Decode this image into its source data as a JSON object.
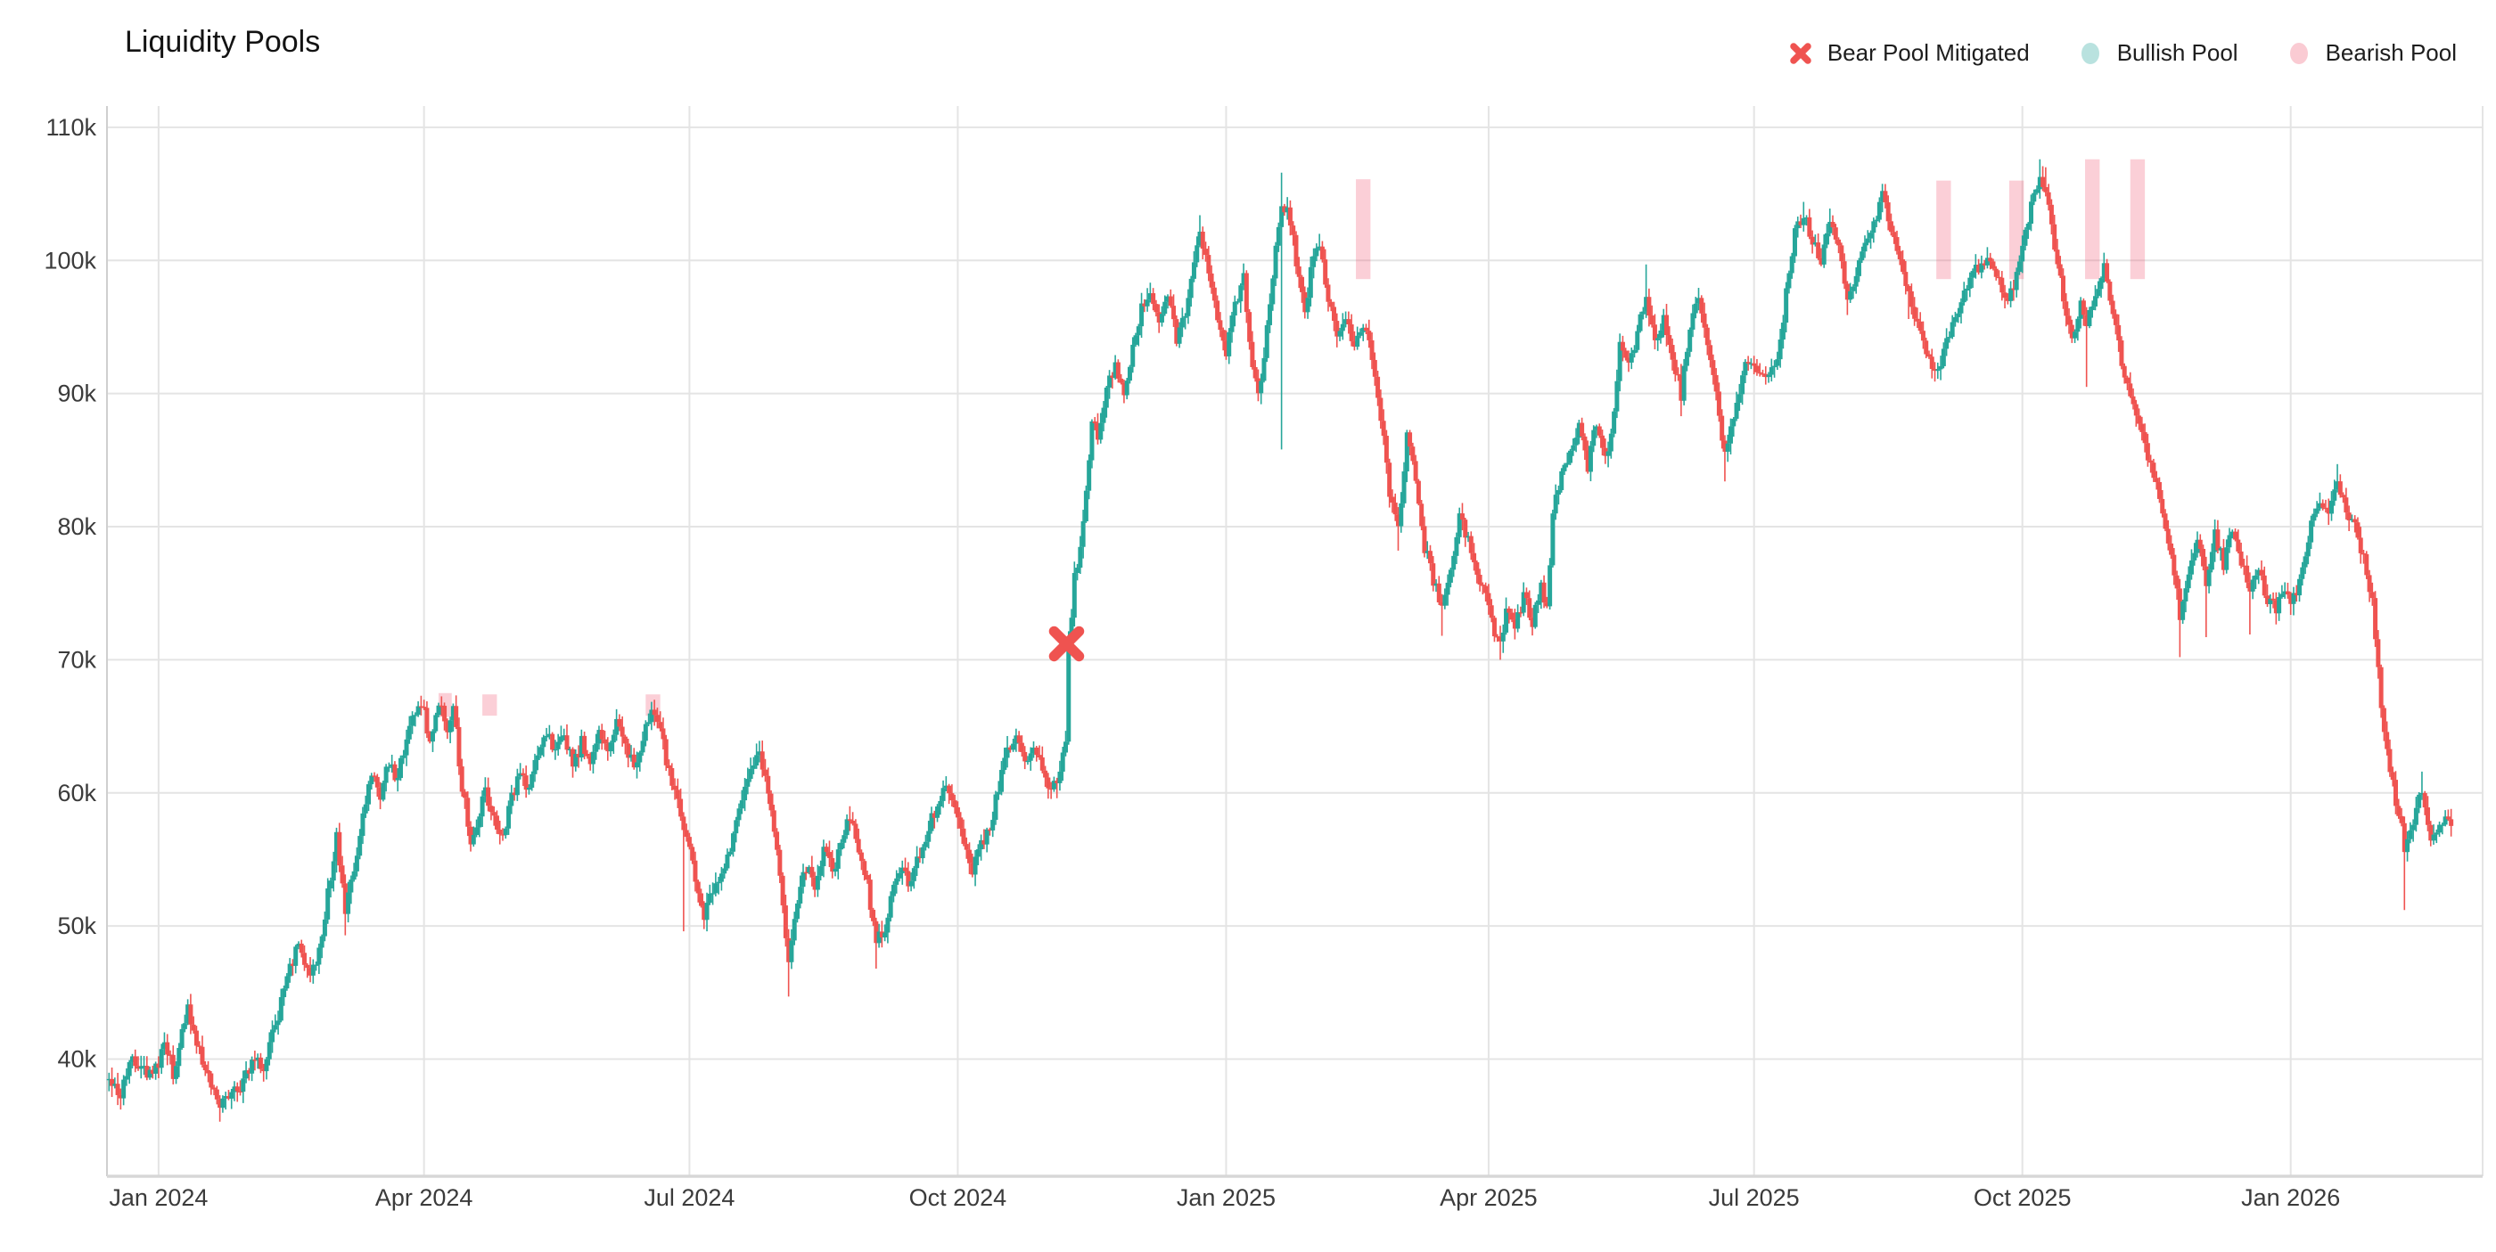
{
  "title": "Liquidity Pools",
  "legend": {
    "items": [
      {
        "label": "Bear Pool Mitigated",
        "icon": "x-marker",
        "color": "#EF5350"
      },
      {
        "label": "Bullish Pool",
        "icon": "dot",
        "color": "rgba(38,166,154,0.32)"
      },
      {
        "label": "Bearish Pool",
        "icon": "dot",
        "color": "rgba(239,83,110,0.30)"
      }
    ]
  },
  "axes": {
    "y_ticks": [
      {
        "value": 40,
        "label": "40k"
      },
      {
        "value": 50,
        "label": "50k"
      },
      {
        "value": 60,
        "label": "60k"
      },
      {
        "value": 70,
        "label": "70k"
      },
      {
        "value": 80,
        "label": "80k"
      },
      {
        "value": 90,
        "label": "90k"
      },
      {
        "value": 100,
        "label": "100k"
      },
      {
        "value": 110,
        "label": "110k"
      }
    ],
    "x_ticks": [
      {
        "day": 0,
        "label": "Jan 2024"
      },
      {
        "day": 91,
        "label": "Apr 2024"
      },
      {
        "day": 182,
        "label": "Jul 2024"
      },
      {
        "day": 274,
        "label": "Oct 2024"
      },
      {
        "day": 366,
        "label": "Jan 2025"
      },
      {
        "day": 456,
        "label": "Apr 2025"
      },
      {
        "day": 547,
        "label": "Jul 2025"
      },
      {
        "day": 639,
        "label": "Oct 2025"
      },
      {
        "day": 731,
        "label": "Jan 2026"
      }
    ]
  },
  "chart_data": {
    "type": "candlestick",
    "title": "Liquidity Pools",
    "x_unit": "days since Jan 1 2024",
    "x_range_days": [
      -17.7,
      796.8
    ],
    "y_range_thousands": [
      31.2,
      111.6
    ],
    "grid": true,
    "legend_position": "top-right",
    "up_color": "#26A69A",
    "down_color": "#EF5350",
    "pool_bearish_color": "#EF536E",
    "pool_bearish_opacity": 0.28,
    "pool_bullish_color": "#26A69A",
    "pool_bullish_opacity": 0.28,
    "marker_color": "#EF5350",
    "close_anchors": [
      [
        -17,
        38.5
      ],
      [
        -13,
        37.6
      ],
      [
        -10,
        40.1
      ],
      [
        -4,
        39.0
      ],
      [
        0,
        39.5
      ],
      [
        2,
        41.6
      ],
      [
        5,
        38.9
      ],
      [
        8,
        42.3
      ],
      [
        10,
        43.6
      ],
      [
        13,
        41.4
      ],
      [
        17,
        38.8
      ],
      [
        21,
        36.2
      ],
      [
        25,
        38.0
      ],
      [
        28,
        37.4
      ],
      [
        32,
        40.0
      ],
      [
        36,
        39.2
      ],
      [
        40,
        42.5
      ],
      [
        44,
        46.2
      ],
      [
        48,
        48.6
      ],
      [
        52,
        46.6
      ],
      [
        55,
        48.0
      ],
      [
        58,
        52.5
      ],
      [
        61,
        56.6
      ],
      [
        64,
        51.0
      ],
      [
        67,
        54.0
      ],
      [
        70,
        58.5
      ],
      [
        73,
        61.5
      ],
      [
        76,
        60.0
      ],
      [
        79,
        62.5
      ],
      [
        82,
        61.0
      ],
      [
        86,
        65.5
      ],
      [
        90,
        66.9
      ],
      [
        93,
        64.0
      ],
      [
        96,
        66.6
      ],
      [
        99,
        65.0
      ],
      [
        101,
        66.4
      ],
      [
        104,
        60.5
      ],
      [
        107,
        56.6
      ],
      [
        110,
        58.5
      ],
      [
        112,
        60.0
      ],
      [
        115,
        58.0
      ],
      [
        118,
        56.8
      ],
      [
        121,
        59.5
      ],
      [
        124,
        61.5
      ],
      [
        127,
        60.2
      ],
      [
        130,
        63.0
      ],
      [
        133,
        64.7
      ],
      [
        136,
        63.2
      ],
      [
        139,
        64.4
      ],
      [
        142,
        62.0
      ],
      [
        145,
        63.8
      ],
      [
        148,
        62.5
      ],
      [
        151,
        64.2
      ],
      [
        154,
        63.0
      ],
      [
        157,
        65.1
      ],
      [
        160,
        63.5
      ],
      [
        163,
        61.8
      ],
      [
        166,
        64.2
      ],
      [
        169,
        65.9
      ],
      [
        172,
        64.5
      ],
      [
        175,
        61.5
      ],
      [
        178,
        59.0
      ],
      [
        181,
        57.0
      ],
      [
        184,
        53.8
      ],
      [
        187,
        50.8
      ],
      [
        190,
        52.5
      ],
      [
        193,
        53.5
      ],
      [
        196,
        55.5
      ],
      [
        199,
        58.5
      ],
      [
        202,
        61.0
      ],
      [
        205,
        63.3
      ],
      [
        208,
        61.5
      ],
      [
        211,
        57.5
      ],
      [
        214,
        51.5
      ],
      [
        216,
        47.5
      ],
      [
        219,
        52.0
      ],
      [
        222,
        54.5
      ],
      [
        225,
        53.0
      ],
      [
        228,
        55.8
      ],
      [
        231,
        54.0
      ],
      [
        234,
        56.5
      ],
      [
        237,
        58.2
      ],
      [
        240,
        56.0
      ],
      [
        243,
        53.0
      ],
      [
        246,
        48.8
      ],
      [
        249,
        49.5
      ],
      [
        252,
        53.5
      ],
      [
        255,
        54.5
      ],
      [
        258,
        53.0
      ],
      [
        261,
        55.5
      ],
      [
        264,
        57.5
      ],
      [
        267,
        59.0
      ],
      [
        270,
        60.6
      ],
      [
        273,
        59.0
      ],
      [
        276,
        56.5
      ],
      [
        279,
        54.3
      ],
      [
        282,
        56.0
      ],
      [
        285,
        57.5
      ],
      [
        288,
        60.5
      ],
      [
        291,
        63.5
      ],
      [
        294,
        64.3
      ],
      [
        297,
        62.5
      ],
      [
        300,
        63.8
      ],
      [
        303,
        62.0
      ],
      [
        306,
        60.3
      ],
      [
        309,
        61.5
      ],
      [
        311,
        64.0
      ],
      [
        312,
        71.3
      ],
      [
        314,
        76.0
      ],
      [
        316,
        78.5
      ],
      [
        318,
        83.0
      ],
      [
        320,
        88.0
      ],
      [
        322,
        87.0
      ],
      [
        325,
        90.5
      ],
      [
        328,
        92.0
      ],
      [
        331,
        89.5
      ],
      [
        334,
        93.5
      ],
      [
        337,
        96.5
      ],
      [
        340,
        98.0
      ],
      [
        343,
        95.5
      ],
      [
        346,
        97.5
      ],
      [
        349,
        94.0
      ],
      [
        352,
        96.0
      ],
      [
        354,
        99.0
      ],
      [
        357,
        102.3
      ],
      [
        360,
        99.5
      ],
      [
        363,
        95.0
      ],
      [
        366,
        93.0
      ],
      [
        369,
        96.5
      ],
      [
        372,
        98.5
      ],
      [
        375,
        92.0
      ],
      [
        377,
        89.5
      ],
      [
        380,
        95.0
      ],
      [
        383,
        101.0
      ],
      [
        385,
        104.3
      ],
      [
        388,
        103.0
      ],
      [
        391,
        98.5
      ],
      [
        393,
        96.0
      ],
      [
        396,
        100.5
      ],
      [
        398,
        101.3
      ],
      [
        401,
        97.0
      ],
      [
        404,
        94.0
      ],
      [
        407,
        95.5
      ],
      [
        410,
        93.5
      ],
      [
        413,
        95.0
      ],
      [
        416,
        93.0
      ],
      [
        419,
        88.5
      ],
      [
        422,
        82.5
      ],
      [
        425,
        79.8
      ],
      [
        428,
        87.0
      ],
      [
        431,
        83.5
      ],
      [
        434,
        78.5
      ],
      [
        437,
        76.0
      ],
      [
        440,
        74.0
      ],
      [
        443,
        76.5
      ],
      [
        446,
        80.5
      ],
      [
        449,
        79.0
      ],
      [
        452,
        76.5
      ],
      [
        455,
        74.5
      ],
      [
        458,
        72.0
      ],
      [
        460,
        71.0
      ],
      [
        462,
        73.5
      ],
      [
        465,
        72.2
      ],
      [
        468,
        74.8
      ],
      [
        471,
        73.0
      ],
      [
        474,
        75.5
      ],
      [
        476,
        74.2
      ],
      [
        478,
        81.0
      ],
      [
        481,
        84.0
      ],
      [
        484,
        85.5
      ],
      [
        487,
        87.5
      ],
      [
        490,
        84.5
      ],
      [
        493,
        88.0
      ],
      [
        496,
        84.8
      ],
      [
        498,
        87.0
      ],
      [
        501,
        93.5
      ],
      [
        504,
        92.0
      ],
      [
        507,
        94.5
      ],
      [
        510,
        97.3
      ],
      [
        513,
        94.0
      ],
      [
        516,
        95.5
      ],
      [
        519,
        93.0
      ],
      [
        522,
        89.8
      ],
      [
        525,
        95.0
      ],
      [
        528,
        96.8
      ],
      [
        531,
        93.5
      ],
      [
        534,
        90.0
      ],
      [
        537,
        85.2
      ],
      [
        540,
        88.0
      ],
      [
        543,
        91.5
      ],
      [
        546,
        92.5
      ],
      [
        549,
        91.2
      ],
      [
        552,
        91.6
      ],
      [
        555,
        92.5
      ],
      [
        558,
        97.5
      ],
      [
        561,
        102.5
      ],
      [
        564,
        103.4
      ],
      [
        567,
        101.5
      ],
      [
        570,
        99.9
      ],
      [
        573,
        103.3
      ],
      [
        576,
        101.0
      ],
      [
        579,
        97.2
      ],
      [
        582,
        99.0
      ],
      [
        585,
        101.5
      ],
      [
        588,
        103.0
      ],
      [
        591,
        104.8
      ],
      [
        594,
        102.5
      ],
      [
        597,
        100.0
      ],
      [
        600,
        97.2
      ],
      [
        603,
        95.5
      ],
      [
        606,
        93.5
      ],
      [
        609,
        91.6
      ],
      [
        612,
        93.0
      ],
      [
        615,
        95.5
      ],
      [
        618,
        97.0
      ],
      [
        621,
        98.5
      ],
      [
        624,
        99.5
      ],
      [
        627,
        100.2
      ],
      [
        630,
        99.0
      ],
      [
        633,
        97.0
      ],
      [
        636,
        98.0
      ],
      [
        639,
        101.0
      ],
      [
        642,
        104.0
      ],
      [
        645,
        106.3
      ],
      [
        647,
        105.3
      ],
      [
        650,
        101.0
      ],
      [
        653,
        97.0
      ],
      [
        656,
        94.5
      ],
      [
        659,
        96.5
      ],
      [
        661,
        95.5
      ],
      [
        664,
        97.5
      ],
      [
        667,
        99.4
      ],
      [
        670,
        96.0
      ],
      [
        673,
        92.5
      ],
      [
        676,
        90.0
      ],
      [
        679,
        88.0
      ],
      [
        682,
        85.5
      ],
      [
        685,
        83.5
      ],
      [
        688,
        79.5
      ],
      [
        691,
        76.5
      ],
      [
        693,
        73.5
      ],
      [
        696,
        76.5
      ],
      [
        699,
        79.0
      ],
      [
        702,
        76.0
      ],
      [
        705,
        79.5
      ],
      [
        708,
        77.0
      ],
      [
        711,
        80.0
      ],
      [
        714,
        77.5
      ],
      [
        717,
        75.5
      ],
      [
        720,
        77.0
      ],
      [
        723,
        74.5
      ],
      [
        726,
        74.0
      ],
      [
        729,
        75.0
      ],
      [
        732,
        74.5
      ],
      [
        735,
        76.5
      ],
      [
        738,
        80.0
      ],
      [
        741,
        81.5
      ],
      [
        744,
        80.5
      ],
      [
        747,
        83.3
      ],
      [
        750,
        81.5
      ],
      [
        753,
        80.0
      ],
      [
        756,
        77.5
      ],
      [
        759,
        74.5
      ],
      [
        762,
        66.5
      ],
      [
        765,
        61.5
      ],
      [
        768,
        58.5
      ],
      [
        770,
        56.0
      ],
      [
        773,
        58.0
      ],
      [
        776,
        60.3
      ],
      [
        779,
        56.8
      ],
      [
        782,
        57.5
      ],
      [
        785,
        58.3
      ],
      [
        786,
        57.6
      ]
    ],
    "spike_lows": [
      [
        21,
        35.3
      ],
      [
        64,
        49.3
      ],
      [
        180,
        49.6
      ],
      [
        216,
        44.7
      ],
      [
        246,
        46.8
      ],
      [
        279,
        53.9
      ],
      [
        308,
        59.6
      ],
      [
        385,
        85.8
      ],
      [
        425,
        78.2
      ],
      [
        440,
        71.8
      ],
      [
        460,
        70.0
      ],
      [
        522,
        88.3
      ],
      [
        537,
        83.4
      ],
      [
        579,
        95.9
      ],
      [
        600,
        95.6
      ],
      [
        609,
        90.9
      ],
      [
        633,
        96.4
      ],
      [
        661,
        90.5
      ],
      [
        693,
        70.2
      ],
      [
        702,
        71.7
      ],
      [
        717,
        71.9
      ],
      [
        770,
        51.2
      ]
    ],
    "spike_highs": [
      [
        10,
        44.5
      ],
      [
        90,
        67.3
      ],
      [
        205,
        63.6
      ],
      [
        237,
        59.0
      ],
      [
        357,
        103.4
      ],
      [
        385,
        106.6
      ],
      [
        398,
        102.0
      ],
      [
        510,
        99.7
      ],
      [
        528,
        97.4
      ],
      [
        564,
        104.4
      ],
      [
        573,
        103.9
      ],
      [
        591,
        105.6
      ],
      [
        627,
        101.0
      ],
      [
        645,
        107.6
      ],
      [
        647,
        107.0
      ],
      [
        747,
        84.7
      ],
      [
        776,
        61.6
      ]
    ],
    "pools": [
      {
        "type": "bearish",
        "start_day": 96,
        "end_day": 100.5,
        "top": 67.5,
        "bottom": 65.7
      },
      {
        "type": "bearish",
        "start_day": 111,
        "end_day": 116,
        "top": 67.4,
        "bottom": 65.8
      },
      {
        "type": "bearish",
        "start_day": 167,
        "end_day": 172,
        "top": 67.4,
        "bottom": 65.8
      },
      {
        "type": "bearish",
        "start_day": 410.5,
        "end_day": 415.5,
        "top": 106.1,
        "bottom": 98.6
      },
      {
        "type": "bearish",
        "start_day": 609.5,
        "end_day": 614.5,
        "top": 106.0,
        "bottom": 98.6
      },
      {
        "type": "bearish",
        "start_day": 634.5,
        "end_day": 639.5,
        "top": 106.0,
        "bottom": 98.6
      },
      {
        "type": "bearish",
        "start_day": 660.5,
        "end_day": 665.5,
        "top": 107.6,
        "bottom": 98.6
      },
      {
        "type": "bearish",
        "start_day": 676,
        "end_day": 681,
        "top": 107.6,
        "bottom": 98.6
      }
    ],
    "mitigated_markers": [
      {
        "type": "bear",
        "day": 311.3,
        "price": 71.2
      }
    ]
  },
  "colors": {
    "grid": "#E4E4E4",
    "axis_line": "#CFCFCF",
    "bottom_axis_line": "#D7D7D7",
    "tick_text": "#3b3b3b",
    "background": "#ffffff"
  }
}
